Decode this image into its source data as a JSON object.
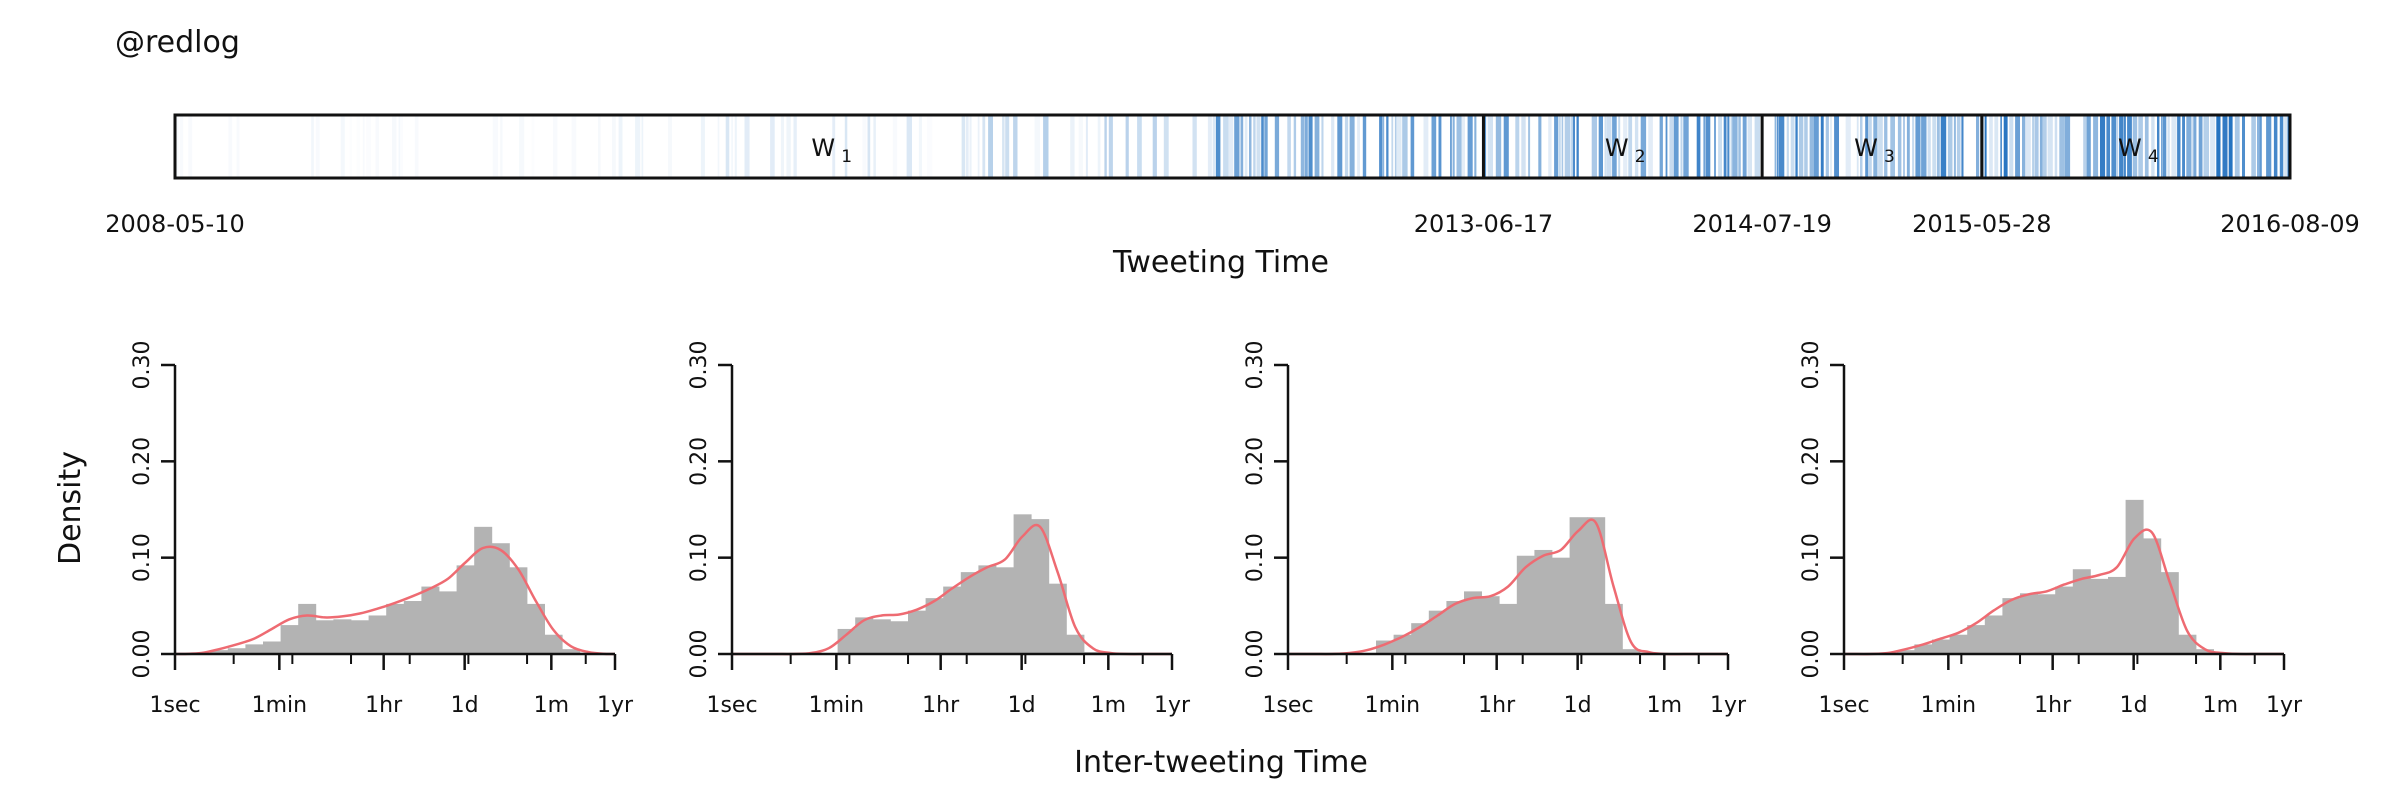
{
  "account": "@redlog",
  "timeline": {
    "xlabel": "Tweeting Time",
    "date_ticks": [
      "2008-05-10",
      "2013-06-17",
      "2014-07-19",
      "2015-05-28",
      "2016-08-09"
    ],
    "windows": [
      {
        "label": "W",
        "sub": "1",
        "start": "2008-05-10",
        "end": "2013-06-17"
      },
      {
        "label": "W",
        "sub": "2",
        "start": "2013-06-17",
        "end": "2014-07-19"
      },
      {
        "label": "W",
        "sub": "3",
        "start": "2014-07-19",
        "end": "2015-05-28"
      },
      {
        "label": "W",
        "sub": "4",
        "start": "2015-05-28",
        "end": "2016-08-09"
      }
    ],
    "density_bands": [
      {
        "start": "2008-05-10",
        "end": "2010-02-01",
        "intensity": 0.04
      },
      {
        "start": "2010-02-01",
        "end": "2011-05-01",
        "intensity": 0.12
      },
      {
        "start": "2011-05-01",
        "end": "2012-06-01",
        "intensity": 0.22
      },
      {
        "start": "2012-06-01",
        "end": "2013-06-17",
        "intensity": 0.55
      },
      {
        "start": "2013-06-17",
        "end": "2014-07-19",
        "intensity": 0.6
      },
      {
        "start": "2014-07-19",
        "end": "2015-05-28",
        "intensity": 0.62
      },
      {
        "start": "2015-05-28",
        "end": "2016-08-09",
        "intensity": 0.68
      }
    ],
    "color": "#1f6fbf"
  },
  "chart_data": [
    {
      "type": "bar",
      "title": "W1",
      "ylabel": "Density",
      "xlabel": "Inter-tweeting Time",
      "x_scale": "log",
      "x_ticks": [
        "1sec",
        "1min",
        "1hr",
        "1d",
        "1m",
        "1yr"
      ],
      "y_ticks": [
        "0.00",
        "0.10",
        "0.20",
        "0.30"
      ],
      "ylim": [
        0,
        0.3
      ],
      "histogram": [
        0.0,
        0.0,
        0.004,
        0.006,
        0.01,
        0.013,
        0.03,
        0.052,
        0.035,
        0.036,
        0.035,
        0.04,
        0.052,
        0.055,
        0.07,
        0.065,
        0.092,
        0.132,
        0.115,
        0.09,
        0.052,
        0.02,
        0.005,
        0.0,
        0.0
      ],
      "density": [
        0.0,
        0.001,
        0.005,
        0.01,
        0.016,
        0.026,
        0.036,
        0.04,
        0.038,
        0.039,
        0.042,
        0.047,
        0.053,
        0.06,
        0.068,
        0.078,
        0.095,
        0.11,
        0.108,
        0.088,
        0.055,
        0.025,
        0.008,
        0.002,
        0.0
      ]
    },
    {
      "type": "bar",
      "title": "W2",
      "ylabel": "Density",
      "xlabel": "Inter-tweeting Time",
      "x_scale": "log",
      "x_ticks": [
        "1sec",
        "1min",
        "1hr",
        "1d",
        "1m",
        "1yr"
      ],
      "y_ticks": [
        "0.00",
        "0.10",
        "0.20",
        "0.30"
      ],
      "ylim": [
        0,
        0.3
      ],
      "histogram": [
        0.0,
        0.0,
        0.0,
        0.0,
        0.0,
        0.0,
        0.026,
        0.038,
        0.036,
        0.034,
        0.045,
        0.058,
        0.07,
        0.085,
        0.092,
        0.09,
        0.145,
        0.14,
        0.073,
        0.02,
        0.002,
        0.0,
        0.0,
        0.0,
        0.0
      ],
      "density": [
        0.0,
        0.0,
        0.0,
        0.0,
        0.001,
        0.006,
        0.02,
        0.035,
        0.04,
        0.041,
        0.046,
        0.055,
        0.068,
        0.08,
        0.09,
        0.098,
        0.122,
        0.132,
        0.085,
        0.028,
        0.006,
        0.001,
        0.0,
        0.0,
        0.0
      ]
    },
    {
      "type": "bar",
      "title": "W3",
      "ylabel": "Density",
      "xlabel": "Inter-tweeting Time",
      "x_scale": "log",
      "x_ticks": [
        "1sec",
        "1min",
        "1hr",
        "1d",
        "1m",
        "1yr"
      ],
      "y_ticks": [
        "0.00",
        "0.10",
        "0.20",
        "0.30"
      ],
      "ylim": [
        0,
        0.3
      ],
      "histogram": [
        0.0,
        0.0,
        0.0,
        0.0,
        0.0,
        0.014,
        0.02,
        0.032,
        0.045,
        0.055,
        0.065,
        0.06,
        0.052,
        0.102,
        0.108,
        0.1,
        0.142,
        0.142,
        0.052,
        0.005,
        0.0,
        0.0,
        0.0,
        0.0,
        0.0
      ],
      "density": [
        0.0,
        0.0,
        0.0,
        0.001,
        0.004,
        0.01,
        0.018,
        0.028,
        0.04,
        0.052,
        0.058,
        0.06,
        0.07,
        0.09,
        0.102,
        0.108,
        0.128,
        0.136,
        0.07,
        0.012,
        0.002,
        0.0,
        0.0,
        0.0,
        0.0
      ]
    },
    {
      "type": "bar",
      "title": "W4",
      "ylabel": "Density",
      "xlabel": "Inter-tweeting Time",
      "x_scale": "log",
      "x_ticks": [
        "1sec",
        "1min",
        "1hr",
        "1d",
        "1m",
        "1yr"
      ],
      "y_ticks": [
        "0.00",
        "0.10",
        "0.20",
        "0.30"
      ],
      "ylim": [
        0,
        0.3
      ],
      "histogram": [
        0.0,
        0.0,
        0.0,
        0.004,
        0.01,
        0.015,
        0.02,
        0.03,
        0.04,
        0.058,
        0.063,
        0.062,
        0.07,
        0.088,
        0.078,
        0.08,
        0.16,
        0.12,
        0.085,
        0.02,
        0.005,
        0.0,
        0.0,
        0.0,
        0.0
      ],
      "density": [
        0.0,
        0.0,
        0.001,
        0.005,
        0.01,
        0.016,
        0.022,
        0.032,
        0.045,
        0.056,
        0.062,
        0.065,
        0.072,
        0.078,
        0.082,
        0.09,
        0.12,
        0.126,
        0.075,
        0.024,
        0.005,
        0.001,
        0.0,
        0.0,
        0.0
      ]
    }
  ],
  "styles": {
    "bar_color": "#b3b3b3",
    "curve_color": "#ee6b72",
    "axis_color": "#111111"
  }
}
